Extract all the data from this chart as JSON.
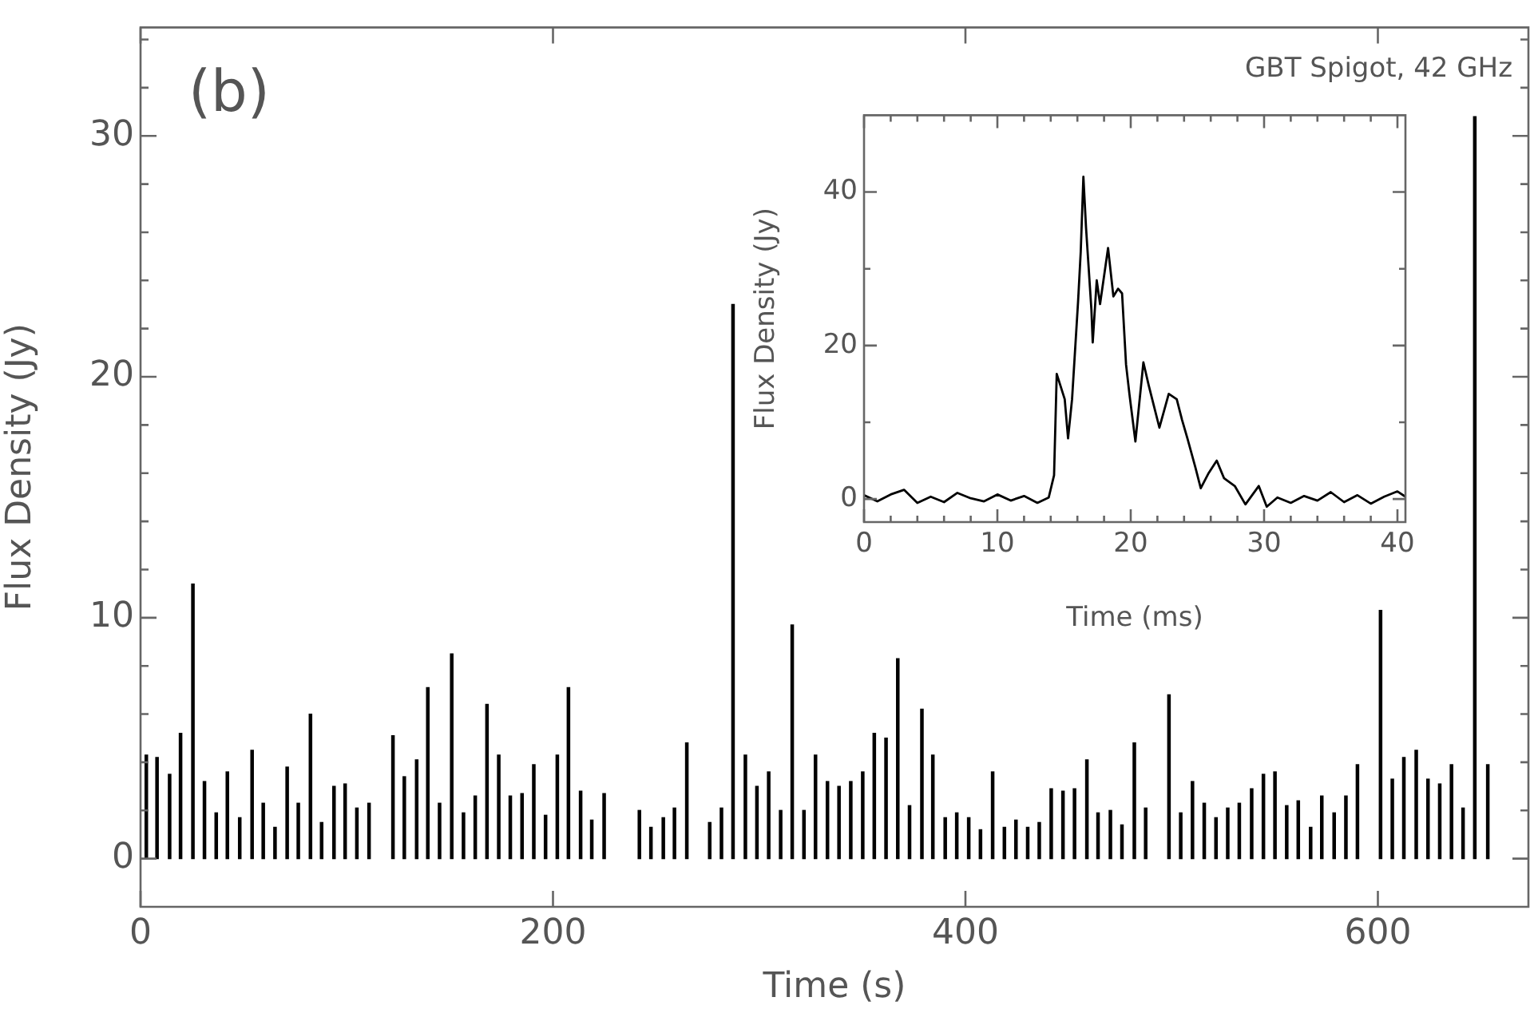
{
  "chart_data": [
    {
      "type": "bar",
      "xlabel": "Time (s)",
      "ylabel": "Flux Density (Jy)",
      "color": "#000000",
      "x": [
        2.8,
        8.0,
        14.1,
        19.4,
        25.4,
        31.0,
        36.7,
        42.1,
        48.1,
        54.1,
        59.5,
        65.2,
        71.1,
        76.5,
        82.4,
        87.8,
        93.8,
        99.2,
        104.9,
        110.8,
        122.4,
        127.9,
        133.9,
        139.3,
        145.0,
        150.9,
        156.6,
        162.3,
        168.0,
        173.7,
        179.3,
        185.0,
        190.7,
        196.4,
        202.1,
        207.5,
        213.4,
        218.8,
        224.8,
        241.9,
        247.5,
        253.5,
        258.9,
        264.9,
        276.0,
        281.7,
        287.3,
        293.3,
        298.9,
        304.6,
        310.4,
        316.0,
        321.7,
        327.3,
        333.1,
        338.7,
        344.4,
        350.2,
        355.8,
        361.5,
        367.2,
        372.9,
        378.9,
        384.2,
        390.2,
        395.8,
        401.6,
        407.3,
        413.2,
        418.9,
        424.5,
        430.2,
        435.8,
        441.6,
        447.3,
        452.9,
        458.9,
        464.3,
        470.3,
        475.9,
        481.9,
        487.4,
        498.7,
        504.4,
        510.1,
        515.8,
        521.5,
        527.2,
        532.8,
        538.8,
        544.5,
        550.1,
        555.8,
        561.4,
        567.4,
        572.8,
        578.8,
        584.5,
        590.1,
        601.3,
        607.0,
        612.6,
        618.6,
        624.3,
        630.0,
        635.7,
        641.3,
        647.0,
        653.3
      ],
      "values": [
        4.3,
        4.2,
        3.5,
        5.2,
        11.4,
        3.2,
        1.9,
        3.6,
        1.7,
        4.5,
        2.3,
        1.3,
        3.8,
        2.3,
        6.0,
        1.5,
        3.0,
        3.1,
        2.1,
        2.3,
        5.1,
        3.4,
        4.1,
        7.1,
        2.3,
        8.5,
        1.9,
        2.6,
        6.4,
        4.3,
        2.6,
        2.7,
        3.9,
        1.8,
        4.3,
        7.1,
        2.8,
        1.6,
        2.7,
        2.0,
        1.3,
        1.7,
        2.1,
        4.8,
        1.5,
        2.1,
        23.0,
        4.3,
        3.0,
        3.6,
        2.0,
        9.7,
        2.0,
        4.3,
        3.2,
        3.0,
        3.2,
        3.6,
        5.2,
        5.0,
        8.3,
        2.2,
        6.2,
        4.3,
        1.7,
        1.9,
        1.7,
        1.2,
        3.6,
        1.3,
        1.6,
        1.3,
        1.5,
        2.9,
        2.8,
        2.9,
        4.1,
        1.9,
        2.0,
        1.4,
        4.8,
        2.1,
        6.8,
        1.9,
        3.2,
        2.3,
        1.7,
        2.1,
        2.3,
        2.9,
        3.5,
        3.6,
        2.2,
        2.4,
        1.3,
        2.6,
        1.9,
        2.6,
        3.9,
        10.3,
        3.3,
        4.2,
        4.5,
        3.3,
        3.1,
        3.9,
        2.1,
        30.8,
        3.9
      ],
      "xlim": [
        0,
        673
      ],
      "ylim": [
        -2,
        34.5
      ],
      "xticks": [
        0,
        200,
        400,
        600
      ],
      "yticks": [
        0,
        {
          "value": 2,
          "label": null
        },
        {
          "value": 4,
          "label": null
        },
        {
          "value": 6,
          "label": null
        },
        {
          "value": 8,
          "label": null
        },
        10,
        {
          "value": 12,
          "label": null
        },
        {
          "value": 14,
          "label": null
        },
        {
          "value": 16,
          "label": null
        },
        {
          "value": 18,
          "label": null
        },
        20,
        {
          "value": 22,
          "label": null
        },
        {
          "value": 24,
          "label": null
        },
        {
          "value": 26,
          "label": null
        },
        {
          "value": 28,
          "label": null
        },
        30,
        {
          "value": 32,
          "label": null
        },
        {
          "value": 34,
          "label": null
        }
      ],
      "grid": false,
      "annotations": [
        "(b)",
        "GBT Spigot, 42 GHz"
      ]
    },
    {
      "type": "line",
      "xlabel": "Time (ms)",
      "ylabel": "Flux Density (Jy)",
      "color": "#000000",
      "x": [
        0,
        1,
        2,
        3,
        4,
        5,
        6,
        7,
        8,
        9,
        10,
        11,
        12,
        13,
        13.85,
        14.25,
        14.45,
        15.05,
        15.3,
        15.6,
        16.05,
        16.25,
        16.45,
        16.65,
        17.05,
        17.15,
        17.45,
        17.7,
        18.3,
        18.7,
        19.05,
        19.35,
        19.65,
        19.9,
        20.35,
        20.95,
        21.35,
        22.15,
        22.85,
        23.45,
        23.85,
        24.25,
        24.85,
        25.25,
        25.85,
        26.45,
        27.0,
        27.8,
        28.6,
        29.6,
        30.2,
        31,
        32,
        33,
        34,
        35,
        36,
        37,
        38,
        39,
        40,
        40.6
      ],
      "values": [
        0.5,
        -0.3,
        0.6,
        1.2,
        -0.5,
        0.3,
        -0.4,
        0.8,
        0.1,
        -0.3,
        0.6,
        -0.2,
        0.4,
        -0.5,
        0.2,
        3.1,
        16.3,
        13.0,
        7.9,
        13.0,
        25.7,
        32.2,
        42.0,
        35.3,
        24.7,
        20.4,
        28.5,
        25.4,
        32.7,
        26.4,
        27.4,
        26.8,
        17.5,
        13.7,
        7.5,
        17.8,
        14.8,
        9.3,
        13.7,
        13.0,
        10.3,
        7.9,
        4.1,
        1.4,
        3.4,
        5.0,
        2.7,
        1.7,
        -0.7,
        1.7,
        -1.0,
        0.2,
        -0.5,
        0.4,
        -0.2,
        0.9,
        -0.4,
        0.5,
        -0.6,
        0.3,
        1.0,
        0.3
      ],
      "xlim": [
        0,
        40.6
      ],
      "ylim": [
        -3,
        50
      ],
      "xticks": [
        0,
        {
          "value": 2,
          "label": null
        },
        {
          "value": 4,
          "label": null
        },
        {
          "value": 6,
          "label": null
        },
        {
          "value": 8,
          "label": null
        },
        10,
        {
          "value": 12,
          "label": null
        },
        {
          "value": 14,
          "label": null
        },
        {
          "value": 16,
          "label": null
        },
        {
          "value": 18,
          "label": null
        },
        20,
        {
          "value": 22,
          "label": null
        },
        {
          "value": 24,
          "label": null
        },
        {
          "value": 26,
          "label": null
        },
        {
          "value": 28,
          "label": null
        },
        30,
        {
          "value": 32,
          "label": null
        },
        {
          "value": 34,
          "label": null
        },
        {
          "value": 36,
          "label": null
        },
        {
          "value": 38,
          "label": null
        },
        40
      ],
      "yticks": [
        0,
        {
          "value": 10,
          "label": null
        },
        20,
        {
          "value": 30,
          "label": null
        },
        40
      ],
      "grid": false
    }
  ]
}
